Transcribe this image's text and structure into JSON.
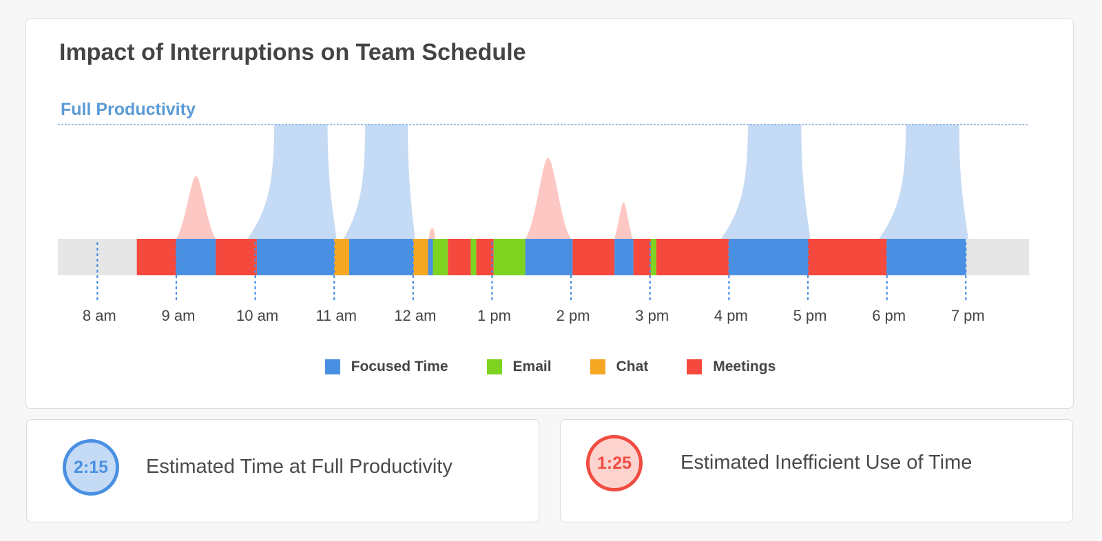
{
  "title": "Impact of Interruptions on Team Schedule",
  "chart_data": {
    "type": "timeline",
    "title": "Impact of Interruptions on Team Schedule",
    "reference_line_label": "Full Productivity",
    "x_ticks": [
      "8 am",
      "9 am",
      "10 am",
      "11 am",
      "12 am",
      "1 pm",
      "2 pm",
      "3 pm",
      "4 pm",
      "5 pm",
      "6 pm",
      "7 pm"
    ],
    "x_range_hours": [
      7.5,
      19.8
    ],
    "day_start": 8.5,
    "day_end": 19.0,
    "legend_position": "bottom-center",
    "categories": {
      "focused": {
        "name": "Focused Time",
        "color": "#4a90e2"
      },
      "email": {
        "name": "Email",
        "color": "#7ed321"
      },
      "chat": {
        "name": "Chat",
        "color": "#f5a623"
      },
      "meetings": {
        "name": "Meetings",
        "color": "#f5493d"
      }
    },
    "segments": [
      {
        "start": 8.5,
        "end": 9.0,
        "category": "meetings"
      },
      {
        "start": 9.0,
        "end": 9.5,
        "category": "focused"
      },
      {
        "start": 9.5,
        "end": 10.02,
        "category": "meetings"
      },
      {
        "start": 10.02,
        "end": 11.0,
        "category": "focused"
      },
      {
        "start": 11.0,
        "end": 11.19,
        "category": "chat"
      },
      {
        "start": 11.19,
        "end": 12.0,
        "category": "focused"
      },
      {
        "start": 12.0,
        "end": 12.19,
        "category": "chat"
      },
      {
        "start": 12.19,
        "end": 12.25,
        "category": "focused"
      },
      {
        "start": 12.25,
        "end": 12.44,
        "category": "email"
      },
      {
        "start": 12.44,
        "end": 12.73,
        "category": "meetings"
      },
      {
        "start": 12.73,
        "end": 12.8,
        "category": "email"
      },
      {
        "start": 12.8,
        "end": 13.02,
        "category": "meetings"
      },
      {
        "start": 13.02,
        "end": 13.42,
        "category": "email"
      },
      {
        "start": 13.42,
        "end": 14.02,
        "category": "focused"
      },
      {
        "start": 14.02,
        "end": 14.55,
        "category": "meetings"
      },
      {
        "start": 14.55,
        "end": 14.79,
        "category": "focused"
      },
      {
        "start": 14.79,
        "end": 15.01,
        "category": "meetings"
      },
      {
        "start": 15.01,
        "end": 15.08,
        "category": "email"
      },
      {
        "start": 15.08,
        "end": 16.0,
        "category": "meetings"
      },
      {
        "start": 16.0,
        "end": 17.0,
        "category": "focused"
      },
      {
        "start": 17.0,
        "end": 18.0,
        "category": "meetings"
      },
      {
        "start": 18.0,
        "end": 19.0,
        "category": "focused"
      }
    ],
    "productivity_curves": [
      {
        "start": 10.0,
        "end": 11.0,
        "level": 1.0,
        "kind": "full"
      },
      {
        "start": 11.2,
        "end": 12.0,
        "level": 1.0,
        "kind": "full"
      },
      {
        "start": 16.0,
        "end": 17.0,
        "level": 1.0,
        "kind": "full"
      },
      {
        "start": 18.0,
        "end": 19.0,
        "level": 1.0,
        "kind": "full"
      },
      {
        "start": 9.0,
        "end": 9.5,
        "level": 0.55,
        "kind": "partial"
      },
      {
        "start": 12.2,
        "end": 12.28,
        "level": 0.09,
        "kind": "partial"
      },
      {
        "start": 13.42,
        "end": 14.0,
        "level": 0.71,
        "kind": "partial"
      },
      {
        "start": 14.55,
        "end": 14.78,
        "level": 0.32,
        "kind": "partial"
      }
    ],
    "colors": {
      "full_fill": "#c5daf4",
      "partial_fill": "#fdc7c3",
      "track": "#e6e6e6",
      "tick": "#4a90e2",
      "reference_line": "#5b9bd5",
      "reference_label": "#5b9bd5"
    }
  },
  "stats": [
    {
      "value": "2:15",
      "label": "Estimated Time at Full Productivity"
    },
    {
      "value": "1:25",
      "label": "Estimated Inefficient Use of Time"
    }
  ]
}
